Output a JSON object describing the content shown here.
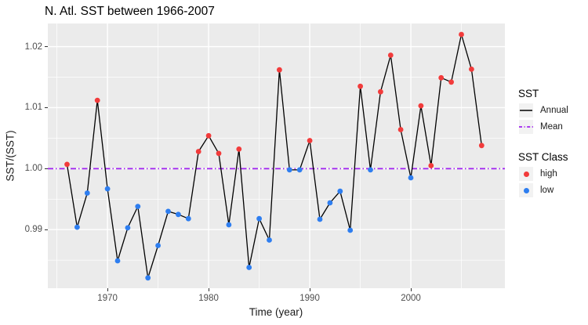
{
  "title": "N. Atl. SST between 1966-2007",
  "axes": {
    "x_label": "Time (year)",
    "y_label": "SST/(SST)",
    "x_tick_labels": [
      "1970",
      "1980",
      "1990",
      "2000"
    ],
    "y_tick_labels": [
      "0.99",
      "1.00",
      "1.01",
      "1.02"
    ]
  },
  "legend": {
    "sst": {
      "title": "SST",
      "annual_label": "Annual",
      "mean_label": "Mean"
    },
    "sst_class": {
      "title": "SST Class",
      "high_label": "high",
      "low_label": "low"
    }
  },
  "colors": {
    "high": "#F23B3B",
    "low": "#2E7EF0",
    "mean_line": "#A020F0",
    "annual_line": "#000000",
    "panel_background": "#EBEBEB",
    "grid": "#FFFFFF",
    "tick_text": "#4D4D4D"
  },
  "chart_data": {
    "type": "line",
    "title": "N. Atl. SST between 1966-2007",
    "xlabel": "Time (year)",
    "ylabel": "SST/(SST)",
    "x": [
      1966,
      1967,
      1968,
      1969,
      1970,
      1971,
      1972,
      1973,
      1974,
      1975,
      1976,
      1977,
      1978,
      1979,
      1980,
      1981,
      1982,
      1983,
      1984,
      1985,
      1986,
      1987,
      1988,
      1989,
      1990,
      1991,
      1992,
      1993,
      1994,
      1995,
      1996,
      1997,
      1998,
      1999,
      2000,
      2001,
      2002,
      2003,
      2004,
      2005,
      2006,
      2007
    ],
    "series": [
      {
        "name": "Annual",
        "values": [
          1.0007,
          0.9904,
          0.996,
          1.0112,
          0.9967,
          0.9849,
          0.9903,
          0.9938,
          0.9821,
          0.9874,
          0.993,
          0.9925,
          0.9918,
          1.0028,
          1.0054,
          1.0025,
          0.9908,
          1.0032,
          0.9838,
          0.9918,
          0.9883,
          1.0162,
          0.9998,
          0.9998,
          1.0046,
          0.9917,
          0.9944,
          0.9963,
          0.9899,
          1.0135,
          0.9998,
          1.0126,
          1.0186,
          1.0064,
          0.9985,
          1.0103,
          1.0005,
          1.0149,
          1.0142,
          1.022,
          1.0163,
          1.0038
        ]
      }
    ],
    "point_class": [
      "high",
      "low",
      "low",
      "high",
      "low",
      "low",
      "low",
      "low",
      "low",
      "low",
      "low",
      "low",
      "low",
      "high",
      "high",
      "high",
      "low",
      "high",
      "low",
      "low",
      "low",
      "high",
      "low",
      "low",
      "high",
      "low",
      "low",
      "low",
      "low",
      "high",
      "low",
      "high",
      "high",
      "high",
      "low",
      "high",
      "high",
      "high",
      "high",
      "high",
      "high",
      "high"
    ],
    "mean_line_y": 1.0,
    "xlim": [
      1964.1,
      2009.3
    ],
    "ylim": [
      0.9804,
      1.0238
    ],
    "x_major_ticks": [
      1970,
      1980,
      1990,
      2000
    ],
    "x_minor_ticks": [
      1965,
      1975,
      1985,
      1995,
      2005
    ],
    "y_major_ticks": [
      0.99,
      1.0,
      1.01,
      1.02
    ],
    "y_minor_ticks": [
      0.985,
      0.995,
      1.005,
      1.015
    ],
    "grid": true,
    "legend_position": "right"
  }
}
